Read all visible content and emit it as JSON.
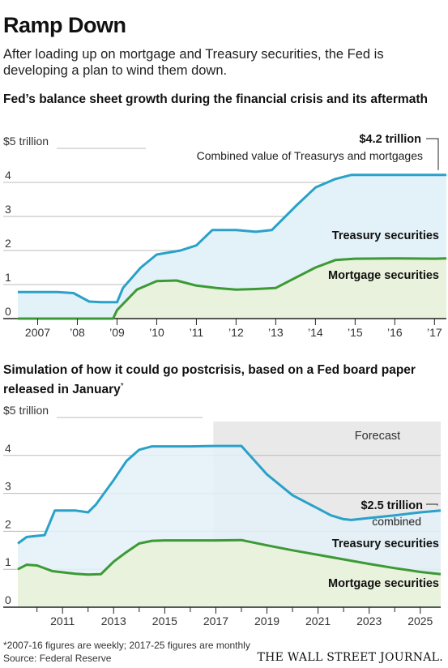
{
  "header": {
    "title": "Ramp Down",
    "subtitle": "After loading up on mortgage and Treasury securities, the Fed is developing a plan to wind them down."
  },
  "colors": {
    "treasury": "#2aa1c8",
    "treasury_fill": "#e3f1f8",
    "mortgage": "#3c9a35",
    "mortgage_fill": "#e9f2dc",
    "forecast_bg": "#e9e9e9",
    "grid": "#bbbbbb"
  },
  "chart_data": [
    {
      "type": "area",
      "title": "Fed’s balance sheet growth during the financial crisis and its aftermath",
      "ylabel": "$5 trillion",
      "ylim": [
        0,
        5
      ],
      "y_ticks": [
        "4",
        "3",
        "2",
        "1",
        "0"
      ],
      "x_ticks": [
        "2007",
        "’08",
        "’09",
        "’10",
        "’11",
        "’12",
        "’13",
        "’14",
        "’15",
        "’16",
        "’17"
      ],
      "x_tick_values": [
        2007,
        2008,
        2009,
        2010,
        2011,
        2012,
        2013,
        2014,
        2015,
        2016,
        2017
      ],
      "xlim": [
        2006.5,
        2017.3
      ],
      "series": [
        {
          "name": "Treasury securities",
          "x": [
            2006.5,
            2007.5,
            2007.9,
            2008.3,
            2008.6,
            2009.0,
            2009.15,
            2009.6,
            2010.0,
            2010.6,
            2011.0,
            2011.4,
            2012.0,
            2012.5,
            2012.9,
            2013.5,
            2014.0,
            2014.5,
            2014.9,
            2015.5,
            2016.0,
            2016.5,
            2017.0,
            2017.3
          ],
          "values": [
            0.78,
            0.78,
            0.75,
            0.5,
            0.48,
            0.48,
            0.9,
            1.5,
            1.88,
            2.0,
            2.15,
            2.6,
            2.6,
            2.55,
            2.6,
            3.3,
            3.85,
            4.1,
            4.22,
            4.22,
            4.22,
            4.22,
            4.22,
            4.22
          ]
        },
        {
          "name": "Mortgage securities",
          "x": [
            2006.5,
            2008.9,
            2009.0,
            2009.5,
            2010.0,
            2010.5,
            2011.0,
            2011.5,
            2012.0,
            2012.5,
            2013.0,
            2013.5,
            2014.0,
            2014.5,
            2015.0,
            2016.0,
            2017.0,
            2017.3
          ],
          "values": [
            0.0,
            0.0,
            0.25,
            0.85,
            1.1,
            1.12,
            0.97,
            0.9,
            0.85,
            0.87,
            0.9,
            1.2,
            1.5,
            1.72,
            1.76,
            1.77,
            1.76,
            1.77
          ]
        }
      ],
      "annotations": [
        {
          "value_label": "$4.2 trillion",
          "text": "Combined value of Treasurys and mortgages"
        },
        {
          "text": "Treasury securities"
        },
        {
          "text": "Mortgage securities"
        }
      ]
    },
    {
      "type": "area",
      "title": "Simulation of how it could go postcrisis, based on a Fed board paper released in January",
      "title_mark": "*",
      "ylabel": "$5 trillion",
      "ylim": [
        0,
        5
      ],
      "y_ticks": [
        "4",
        "3",
        "2",
        "1",
        "0"
      ],
      "x_ticks": [
        "2011",
        "2013",
        "2015",
        "2017",
        "2019",
        "2021",
        "2023",
        "2025"
      ],
      "x_tick_values": [
        2011,
        2013,
        2015,
        2017,
        2019,
        2021,
        2023,
        2025
      ],
      "xlim": [
        2009.25,
        2025.8
      ],
      "forecast_start": 2016.9,
      "series": [
        {
          "name": "Treasury securities",
          "x": [
            2009.25,
            2009.6,
            2010.0,
            2010.3,
            2010.7,
            2011.5,
            2012.0,
            2012.3,
            2013.0,
            2013.5,
            2014.0,
            2014.5,
            2015.0,
            2016.0,
            2017.0,
            2017.5,
            2018.0,
            2019.0,
            2020.0,
            2021.0,
            2021.5,
            2022.0,
            2022.3,
            2023.0,
            2024.0,
            2025.0,
            2025.8
          ],
          "values": [
            1.68,
            1.85,
            1.88,
            1.9,
            2.55,
            2.55,
            2.5,
            2.7,
            3.35,
            3.85,
            4.15,
            4.24,
            4.24,
            4.24,
            4.25,
            4.25,
            4.25,
            3.5,
            2.95,
            2.6,
            2.42,
            2.32,
            2.3,
            2.35,
            2.42,
            2.5,
            2.55
          ]
        },
        {
          "name": "Mortgage securities",
          "x": [
            2009.25,
            2009.6,
            2010.0,
            2010.6,
            2011.5,
            2012.0,
            2012.5,
            2013.0,
            2013.5,
            2014.0,
            2014.5,
            2015.0,
            2016.0,
            2017.0,
            2018.0,
            2019.0,
            2020.0,
            2021.0,
            2022.0,
            2023.0,
            2024.0,
            2025.0,
            2025.8
          ],
          "values": [
            1.0,
            1.12,
            1.1,
            0.95,
            0.88,
            0.86,
            0.87,
            1.2,
            1.45,
            1.68,
            1.75,
            1.76,
            1.76,
            1.76,
            1.77,
            1.63,
            1.5,
            1.38,
            1.26,
            1.14,
            1.03,
            0.93,
            0.87
          ]
        }
      ],
      "annotations": [
        {
          "text": "Forecast"
        },
        {
          "value_label": "$2.5 trillion",
          "text": "combined"
        },
        {
          "text": "Treasury securities"
        },
        {
          "text": "Mortgage securities"
        }
      ]
    }
  ],
  "footer": {
    "footnote": "*2007-16 figures are weekly; 2017-25 figures are monthly",
    "source": "Source: Federal Reserve",
    "publisher": "THE WALL STREET JOURNAL."
  }
}
